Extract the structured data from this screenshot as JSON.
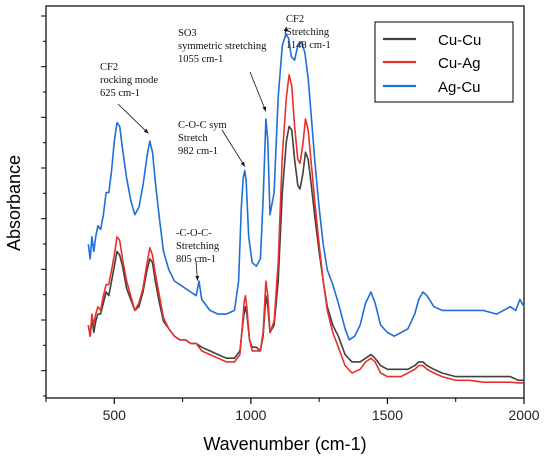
{
  "chart_data": {
    "type": "line",
    "title": "",
    "xlabel": "Wavenumber (cm-1)",
    "ylabel": "Absorbance",
    "xlim": [
      250,
      2000
    ],
    "ylim": [
      0,
      100
    ],
    "x_ticks": [
      500,
      1000,
      1500,
      2000
    ],
    "y_tick_labels_shown": false,
    "grid": false,
    "legend": {
      "position": "top-right",
      "entries": [
        "Cu-Cu",
        "Cu-Ag",
        "Ag-Cu"
      ]
    },
    "series": [
      {
        "name": "Cu-Cu",
        "color": "#404040",
        "points": [
          [
            405,
            16
          ],
          [
            412,
            13
          ],
          [
            418,
            18
          ],
          [
            425,
            14
          ],
          [
            432,
            17
          ],
          [
            440,
            19
          ],
          [
            450,
            19
          ],
          [
            460,
            22
          ],
          [
            470,
            25
          ],
          [
            480,
            24
          ],
          [
            490,
            28
          ],
          [
            500,
            32
          ],
          [
            510,
            36
          ],
          [
            520,
            35
          ],
          [
            530,
            32
          ],
          [
            545,
            26
          ],
          [
            560,
            23
          ],
          [
            575,
            20
          ],
          [
            590,
            21
          ],
          [
            605,
            25
          ],
          [
            620,
            31
          ],
          [
            630,
            34
          ],
          [
            640,
            33
          ],
          [
            650,
            28
          ],
          [
            665,
            22
          ],
          [
            680,
            17
          ],
          [
            700,
            15
          ],
          [
            720,
            13
          ],
          [
            740,
            12
          ],
          [
            760,
            12
          ],
          [
            780,
            11
          ],
          [
            800,
            11
          ],
          [
            820,
            10
          ],
          [
            850,
            9
          ],
          [
            880,
            8
          ],
          [
            910,
            7
          ],
          [
            940,
            7
          ],
          [
            960,
            9
          ],
          [
            970,
            16
          ],
          [
            975,
            19
          ],
          [
            980,
            21
          ],
          [
            985,
            19
          ],
          [
            995,
            12
          ],
          [
            1005,
            10
          ],
          [
            1020,
            10
          ],
          [
            1035,
            9
          ],
          [
            1045,
            13
          ],
          [
            1055,
            24
          ],
          [
            1062,
            21
          ],
          [
            1070,
            14
          ],
          [
            1085,
            16
          ],
          [
            1100,
            28
          ],
          [
            1115,
            52
          ],
          [
            1130,
            66
          ],
          [
            1140,
            70
          ],
          [
            1150,
            69
          ],
          [
            1160,
            61
          ],
          [
            1172,
            54
          ],
          [
            1180,
            53
          ],
          [
            1190,
            57
          ],
          [
            1200,
            63
          ],
          [
            1210,
            61
          ],
          [
            1220,
            55
          ],
          [
            1235,
            45
          ],
          [
            1250,
            36
          ],
          [
            1265,
            28
          ],
          [
            1280,
            21
          ],
          [
            1300,
            16
          ],
          [
            1320,
            13
          ],
          [
            1345,
            8
          ],
          [
            1370,
            6
          ],
          [
            1400,
            6
          ],
          [
            1420,
            7
          ],
          [
            1440,
            8
          ],
          [
            1455,
            7
          ],
          [
            1475,
            5
          ],
          [
            1500,
            4
          ],
          [
            1525,
            4
          ],
          [
            1550,
            4
          ],
          [
            1575,
            4
          ],
          [
            1600,
            5
          ],
          [
            1615,
            6
          ],
          [
            1630,
            6
          ],
          [
            1645,
            5
          ],
          [
            1670,
            4
          ],
          [
            1700,
            3
          ],
          [
            1750,
            2
          ],
          [
            1800,
            2
          ],
          [
            1850,
            2
          ],
          [
            1900,
            2
          ],
          [
            1950,
            2
          ],
          [
            1980,
            1
          ],
          [
            2000,
            1
          ]
        ]
      },
      {
        "name": "Cu-Ag",
        "color": "#e8302f",
        "points": [
          [
            405,
            16
          ],
          [
            412,
            13
          ],
          [
            418,
            19
          ],
          [
            425,
            16
          ],
          [
            432,
            19
          ],
          [
            440,
            21
          ],
          [
            450,
            20
          ],
          [
            460,
            24
          ],
          [
            470,
            27
          ],
          [
            480,
            27
          ],
          [
            490,
            31
          ],
          [
            500,
            35
          ],
          [
            510,
            40
          ],
          [
            520,
            39
          ],
          [
            530,
            34
          ],
          [
            545,
            28
          ],
          [
            560,
            24
          ],
          [
            575,
            20
          ],
          [
            590,
            22
          ],
          [
            605,
            26
          ],
          [
            620,
            33
          ],
          [
            630,
            37
          ],
          [
            640,
            35
          ],
          [
            650,
            30
          ],
          [
            665,
            24
          ],
          [
            680,
            18
          ],
          [
            700,
            15
          ],
          [
            720,
            13
          ],
          [
            740,
            12
          ],
          [
            760,
            12
          ],
          [
            780,
            11
          ],
          [
            800,
            11
          ],
          [
            820,
            9
          ],
          [
            850,
            8
          ],
          [
            880,
            7
          ],
          [
            910,
            6
          ],
          [
            940,
            6
          ],
          [
            960,
            8
          ],
          [
            970,
            17
          ],
          [
            975,
            22
          ],
          [
            980,
            24
          ],
          [
            985,
            21
          ],
          [
            995,
            12
          ],
          [
            1005,
            9
          ],
          [
            1020,
            9
          ],
          [
            1035,
            9
          ],
          [
            1045,
            14
          ],
          [
            1055,
            28
          ],
          [
            1062,
            24
          ],
          [
            1070,
            14
          ],
          [
            1085,
            17
          ],
          [
            1100,
            33
          ],
          [
            1115,
            62
          ],
          [
            1130,
            78
          ],
          [
            1140,
            84
          ],
          [
            1150,
            81
          ],
          [
            1160,
            70
          ],
          [
            1172,
            61
          ],
          [
            1180,
            60
          ],
          [
            1190,
            65
          ],
          [
            1200,
            72
          ],
          [
            1210,
            69
          ],
          [
            1220,
            61
          ],
          [
            1235,
            49
          ],
          [
            1250,
            38
          ],
          [
            1265,
            28
          ],
          [
            1280,
            20
          ],
          [
            1300,
            14
          ],
          [
            1320,
            10
          ],
          [
            1345,
            5
          ],
          [
            1370,
            3
          ],
          [
            1400,
            4
          ],
          [
            1420,
            6
          ],
          [
            1440,
            7
          ],
          [
            1455,
            6
          ],
          [
            1475,
            3
          ],
          [
            1500,
            2
          ],
          [
            1525,
            2
          ],
          [
            1550,
            2
          ],
          [
            1575,
            3
          ],
          [
            1600,
            4
          ],
          [
            1615,
            5
          ],
          [
            1630,
            5
          ],
          [
            1645,
            4
          ],
          [
            1670,
            3
          ],
          [
            1700,
            2
          ],
          [
            1750,
            1
          ],
          [
            1800,
            1
          ],
          [
            1850,
            0.5
          ],
          [
            1900,
            0.5
          ],
          [
            1950,
            0.5
          ],
          [
            1980,
            0.3
          ],
          [
            2000,
            0.3
          ]
        ]
      },
      {
        "name": "Ag-Cu",
        "color": "#1f6fd6",
        "points": [
          [
            405,
            38
          ],
          [
            412,
            34
          ],
          [
            418,
            40
          ],
          [
            425,
            36
          ],
          [
            432,
            40
          ],
          [
            440,
            43
          ],
          [
            450,
            42
          ],
          [
            460,
            46
          ],
          [
            470,
            52
          ],
          [
            480,
            52
          ],
          [
            490,
            58
          ],
          [
            500,
            66
          ],
          [
            510,
            71
          ],
          [
            520,
            70
          ],
          [
            530,
            64
          ],
          [
            545,
            56
          ],
          [
            560,
            50
          ],
          [
            575,
            46
          ],
          [
            590,
            48
          ],
          [
            605,
            54
          ],
          [
            620,
            62
          ],
          [
            630,
            66
          ],
          [
            640,
            63
          ],
          [
            650,
            55
          ],
          [
            665,
            45
          ],
          [
            680,
            36
          ],
          [
            700,
            31
          ],
          [
            720,
            28
          ],
          [
            740,
            27
          ],
          [
            760,
            26
          ],
          [
            780,
            25
          ],
          [
            800,
            24
          ],
          [
            810,
            28
          ],
          [
            820,
            23
          ],
          [
            850,
            20
          ],
          [
            880,
            19
          ],
          [
            910,
            19
          ],
          [
            940,
            20
          ],
          [
            955,
            28
          ],
          [
            965,
            48
          ],
          [
            972,
            56
          ],
          [
            978,
            58
          ],
          [
            983,
            55
          ],
          [
            992,
            40
          ],
          [
            1005,
            33
          ],
          [
            1020,
            32
          ],
          [
            1035,
            34
          ],
          [
            1045,
            50
          ],
          [
            1055,
            72
          ],
          [
            1062,
            66
          ],
          [
            1070,
            46
          ],
          [
            1085,
            52
          ],
          [
            1100,
            78
          ],
          [
            1115,
            92
          ],
          [
            1128,
            95
          ],
          [
            1138,
            94
          ],
          [
            1148,
            89
          ],
          [
            1160,
            88
          ],
          [
            1172,
            92
          ],
          [
            1185,
            93
          ],
          [
            1198,
            90
          ],
          [
            1210,
            83
          ],
          [
            1222,
            72
          ],
          [
            1235,
            60
          ],
          [
            1250,
            48
          ],
          [
            1265,
            38
          ],
          [
            1280,
            31
          ],
          [
            1300,
            27
          ],
          [
            1320,
            22
          ],
          [
            1345,
            15
          ],
          [
            1360,
            12
          ],
          [
            1380,
            13
          ],
          [
            1400,
            16
          ],
          [
            1420,
            22
          ],
          [
            1440,
            25
          ],
          [
            1455,
            22
          ],
          [
            1475,
            16
          ],
          [
            1500,
            14
          ],
          [
            1525,
            13
          ],
          [
            1550,
            14
          ],
          [
            1575,
            15
          ],
          [
            1600,
            19
          ],
          [
            1615,
            23
          ],
          [
            1630,
            25
          ],
          [
            1645,
            24
          ],
          [
            1670,
            21
          ],
          [
            1700,
            20
          ],
          [
            1750,
            20
          ],
          [
            1800,
            20
          ],
          [
            1850,
            20
          ],
          [
            1900,
            19
          ],
          [
            1950,
            21
          ],
          [
            1970,
            20
          ],
          [
            1985,
            23
          ],
          [
            2000,
            21
          ]
        ]
      }
    ],
    "annotations": [
      {
        "lines": [
          "CF2",
          "rocking mode",
          "625 cm-1"
        ],
        "target": [
          625,
          67
        ]
      },
      {
        "lines": [
          "-C-O-C-",
          "Stretching",
          "805 cm-1"
        ],
        "target": [
          805,
          27
        ]
      },
      {
        "lines": [
          "C-O-C sym",
          "Stretch",
          "982 cm-1"
        ],
        "target": [
          978,
          58
        ]
      },
      {
        "lines": [
          "SO3",
          "symmetric stretching",
          "1055 cm-1"
        ],
        "target": [
          1055,
          73
        ]
      },
      {
        "lines": [
          "CF2",
          "Stretching",
          "1148 cm-1"
        ],
        "target": [
          1130,
          96
        ]
      }
    ]
  }
}
